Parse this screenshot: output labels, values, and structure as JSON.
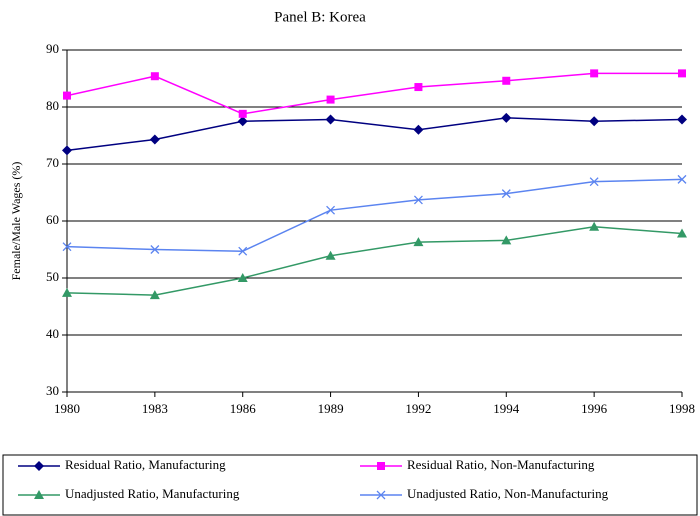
{
  "chart_data": {
    "type": "line",
    "title": "Panel B:  Korea",
    "ylabel": "Female/Male Wages (%)",
    "categories": [
      "1980",
      "1983",
      "1986",
      "1989",
      "1992",
      "1994",
      "1996",
      "1998"
    ],
    "series": [
      {
        "name": "Residual Ratio, Manufacturing",
        "color": "#000080",
        "marker": "diamond",
        "values": [
          72.4,
          74.3,
          77.5,
          77.8,
          76.0,
          78.1,
          77.5,
          77.8
        ]
      },
      {
        "name": "Residual Ratio, Non-Manufacturing",
        "color": "#ff00ff",
        "marker": "square",
        "values": [
          82.0,
          85.4,
          78.8,
          81.3,
          83.5,
          84.6,
          85.9,
          85.9
        ]
      },
      {
        "name": "Unadjusted Ratio, Manufacturing",
        "color": "#339966",
        "marker": "triangle",
        "values": [
          47.4,
          47.0,
          50.0,
          53.9,
          56.3,
          56.6,
          59.0,
          57.8
        ]
      },
      {
        "name": "Unadjusted Ratio, Non-Manufacturing",
        "color": "#5b84f0",
        "marker": "x",
        "values": [
          55.5,
          55.0,
          54.7,
          61.9,
          63.7,
          64.8,
          66.9,
          67.3
        ]
      }
    ],
    "ylim": [
      30,
      90
    ],
    "yticks": [
      30,
      40,
      50,
      60,
      70,
      80,
      90
    ],
    "grid": true
  }
}
